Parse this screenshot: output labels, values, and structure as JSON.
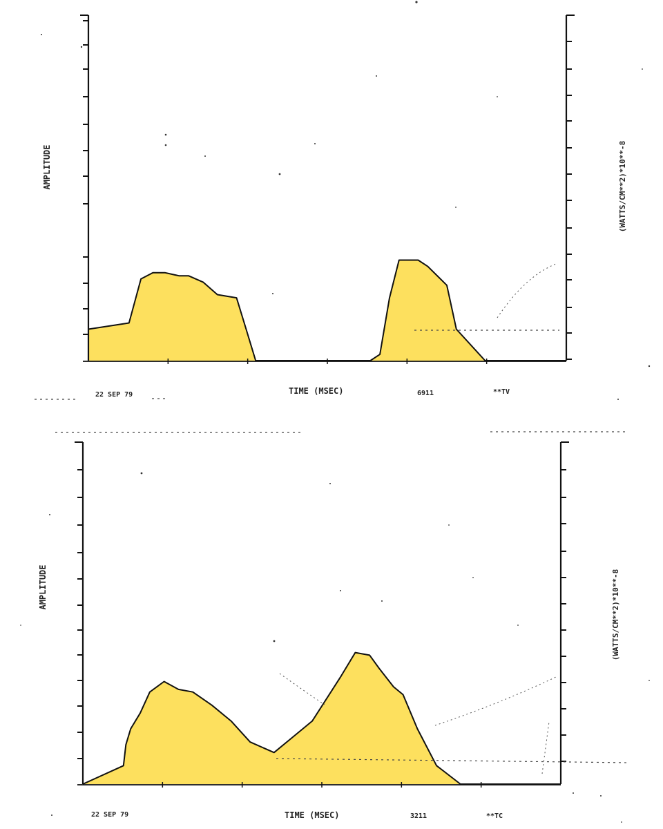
{
  "chart_data": [
    {
      "type": "area",
      "ylabel": "AMPLITUDE",
      "y2label": "(WATTS/CM**2)*10**-8",
      "xlabel": "TIME (MSEC)",
      "date": "22 SEP 79",
      "codes": [
        "6911",
        "**TV"
      ],
      "fill_color": "#FDE05E",
      "ylim": [
        0,
        11
      ],
      "xlim": [
        0,
        100
      ],
      "y2_ticks": 12,
      "series": [
        {
          "name": "amplitude",
          "x": [
            0,
            8.5,
            11,
            13.5,
            16,
            19,
            21,
            24,
            27,
            31,
            33,
            35,
            40,
            59,
            61,
            63,
            65,
            69,
            71,
            75,
            77,
            83,
            92,
            100
          ],
          "y": [
            1.0,
            1.2,
            2.6,
            2.8,
            2.8,
            2.7,
            2.7,
            2.5,
            2.1,
            2.0,
            1.0,
            0,
            0,
            0,
            0.2,
            2.0,
            3.2,
            3.2,
            3.0,
            2.4,
            1.0,
            0,
            0,
            0
          ]
        }
      ]
    },
    {
      "type": "area",
      "ylabel": "AMPLITUDE",
      "y2label": "(WATTS/CM**2)*10**-8",
      "xlabel": "TIME (MSEC)",
      "date": "22 SEP 79",
      "codes": [
        "3211",
        "**TC"
      ],
      "fill_color": "#FDE05E",
      "ylim": [
        0,
        13
      ],
      "xlim": [
        0,
        100
      ],
      "y2_ticks": 13,
      "series": [
        {
          "name": "amplitude",
          "x": [
            0,
            8.5,
            9,
            10,
            12,
            14,
            17,
            20,
            23,
            27,
            31,
            35,
            40,
            44,
            48,
            54,
            57,
            60,
            62,
            65,
            67,
            70,
            74,
            79,
            100
          ],
          "y": [
            0,
            0.7,
            1.5,
            2.1,
            2.7,
            3.5,
            3.9,
            3.6,
            3.5,
            3.0,
            2.4,
            1.6,
            1.2,
            1.8,
            2.4,
            4.1,
            5.0,
            4.9,
            4.4,
            3.7,
            3.4,
            2.1,
            0.7,
            0,
            0
          ]
        }
      ]
    }
  ]
}
